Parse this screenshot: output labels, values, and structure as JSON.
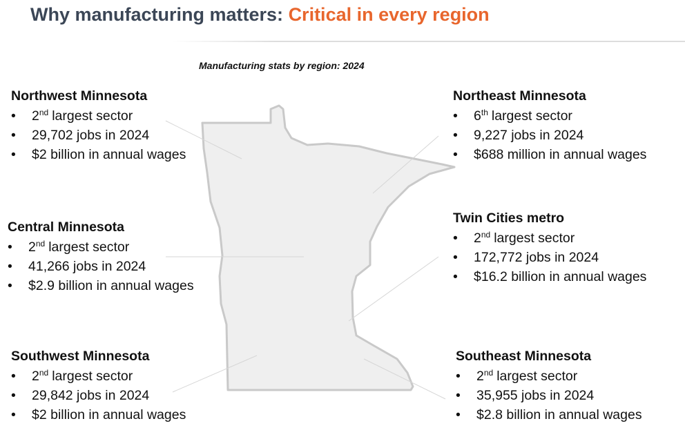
{
  "header": {
    "title_lead": "Why manufacturing matters:",
    "title_highlight": "Critical in every region"
  },
  "subtitle": "Manufacturing stats by region: 2024",
  "regions": [
    {
      "name": "Northwest Minnesota",
      "rank": "2",
      "rank_suffix": "nd",
      "rank_text": "largest sector",
      "jobs": "29,702 jobs in 2024",
      "wages": "$2 billion in annual wages"
    },
    {
      "name": "Northeast Minnesota",
      "rank": "6",
      "rank_suffix": "th",
      "rank_text": "largest sector",
      "jobs": "9,227 jobs in 2024",
      "wages": "$688 million in annual wages"
    },
    {
      "name": "Central Minnesota",
      "rank": "2",
      "rank_suffix": "nd",
      "rank_text": "largest sector",
      "jobs": "41,266 jobs in 2024",
      "wages": "$2.9 billion in annual wages"
    },
    {
      "name": "Twin Cities metro",
      "rank": "2",
      "rank_suffix": "nd",
      "rank_text": "largest sector",
      "jobs": "172,772 jobs in 2024",
      "wages": "$16.2 billion in annual wages"
    },
    {
      "name": "Southwest Minnesota",
      "rank": "2",
      "rank_suffix": "nd",
      "rank_text": "largest sector",
      "jobs": "29,842 jobs in 2024",
      "wages": "$2 billion in annual wages"
    },
    {
      "name": "Southeast Minnesota",
      "rank": "2",
      "rank_suffix": "nd",
      "rank_text": "largest sector",
      "jobs": "35,955 jobs in 2024",
      "wages": "$2.8 billion in annual wages"
    }
  ]
}
